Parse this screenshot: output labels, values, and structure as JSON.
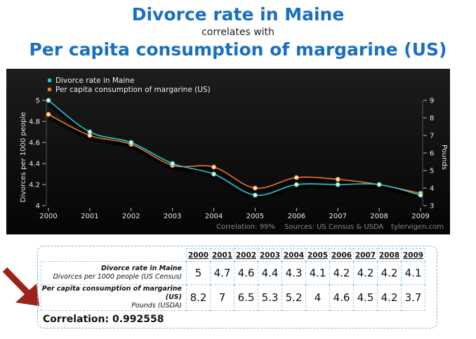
{
  "header": {
    "title": "Divorce rate in Maine",
    "subtitle": "correlates with",
    "title2": "Per capita consumption of margarine (US)"
  },
  "colors": {
    "series1": "#27c4d4",
    "series2": "#e8782a",
    "chart_bg": "#101010",
    "title": "#1a6fc0",
    "arrow": "#9b2317"
  },
  "chart_data": {
    "type": "line",
    "x": [
      2000,
      2001,
      2002,
      2003,
      2004,
      2005,
      2006,
      2007,
      2008,
      2009
    ],
    "xlabel": "",
    "y_left_label": "Divorces per 1000 people",
    "y_left_range": [
      4,
      5
    ],
    "y_left_ticks": [
      "4",
      "4.2",
      "4.4",
      "4.6",
      "4.8",
      "5"
    ],
    "y_right_label": "Pounds",
    "y_right_range": [
      3,
      9
    ],
    "y_right_ticks": [
      "3",
      "4",
      "5",
      "6",
      "7",
      "8",
      "9"
    ],
    "legend_position": "top-left",
    "series": [
      {
        "name": "Divorce rate in Maine",
        "axis": "left",
        "values": [
          5,
          4.7,
          4.6,
          4.4,
          4.3,
          4.1,
          4.2,
          4.2,
          4.2,
          4.1
        ]
      },
      {
        "name": "Per capita consumption of margarine (US)",
        "axis": "right",
        "values": [
          8.2,
          7,
          6.5,
          5.3,
          5.2,
          4,
          4.6,
          4.5,
          4.2,
          3.7
        ]
      }
    ],
    "footer": {
      "correlation": "Correlation: 99%",
      "sources": "Sources: US Census & USDA",
      "site": "tylervigen.com"
    }
  },
  "table": {
    "years": [
      "2000",
      "2001",
      "2002",
      "2003",
      "2004",
      "2005",
      "2006",
      "2007",
      "2008",
      "2009"
    ],
    "rows": [
      {
        "label": "Divorce rate in Maine",
        "sublabel": "Divorces per 1000 people (US Census)",
        "values": [
          "5",
          "4.7",
          "4.6",
          "4.4",
          "4.3",
          "4.1",
          "4.2",
          "4.2",
          "4.2",
          "4.1"
        ]
      },
      {
        "label": "Per capita consumption of margarine (US)",
        "sublabel": "Pounds (USDA)",
        "values": [
          "8.2",
          "7",
          "6.5",
          "5.3",
          "5.2",
          "4",
          "4.6",
          "4.5",
          "4.2",
          "3.7"
        ]
      }
    ],
    "correlation": "Correlation: 0.992558"
  }
}
